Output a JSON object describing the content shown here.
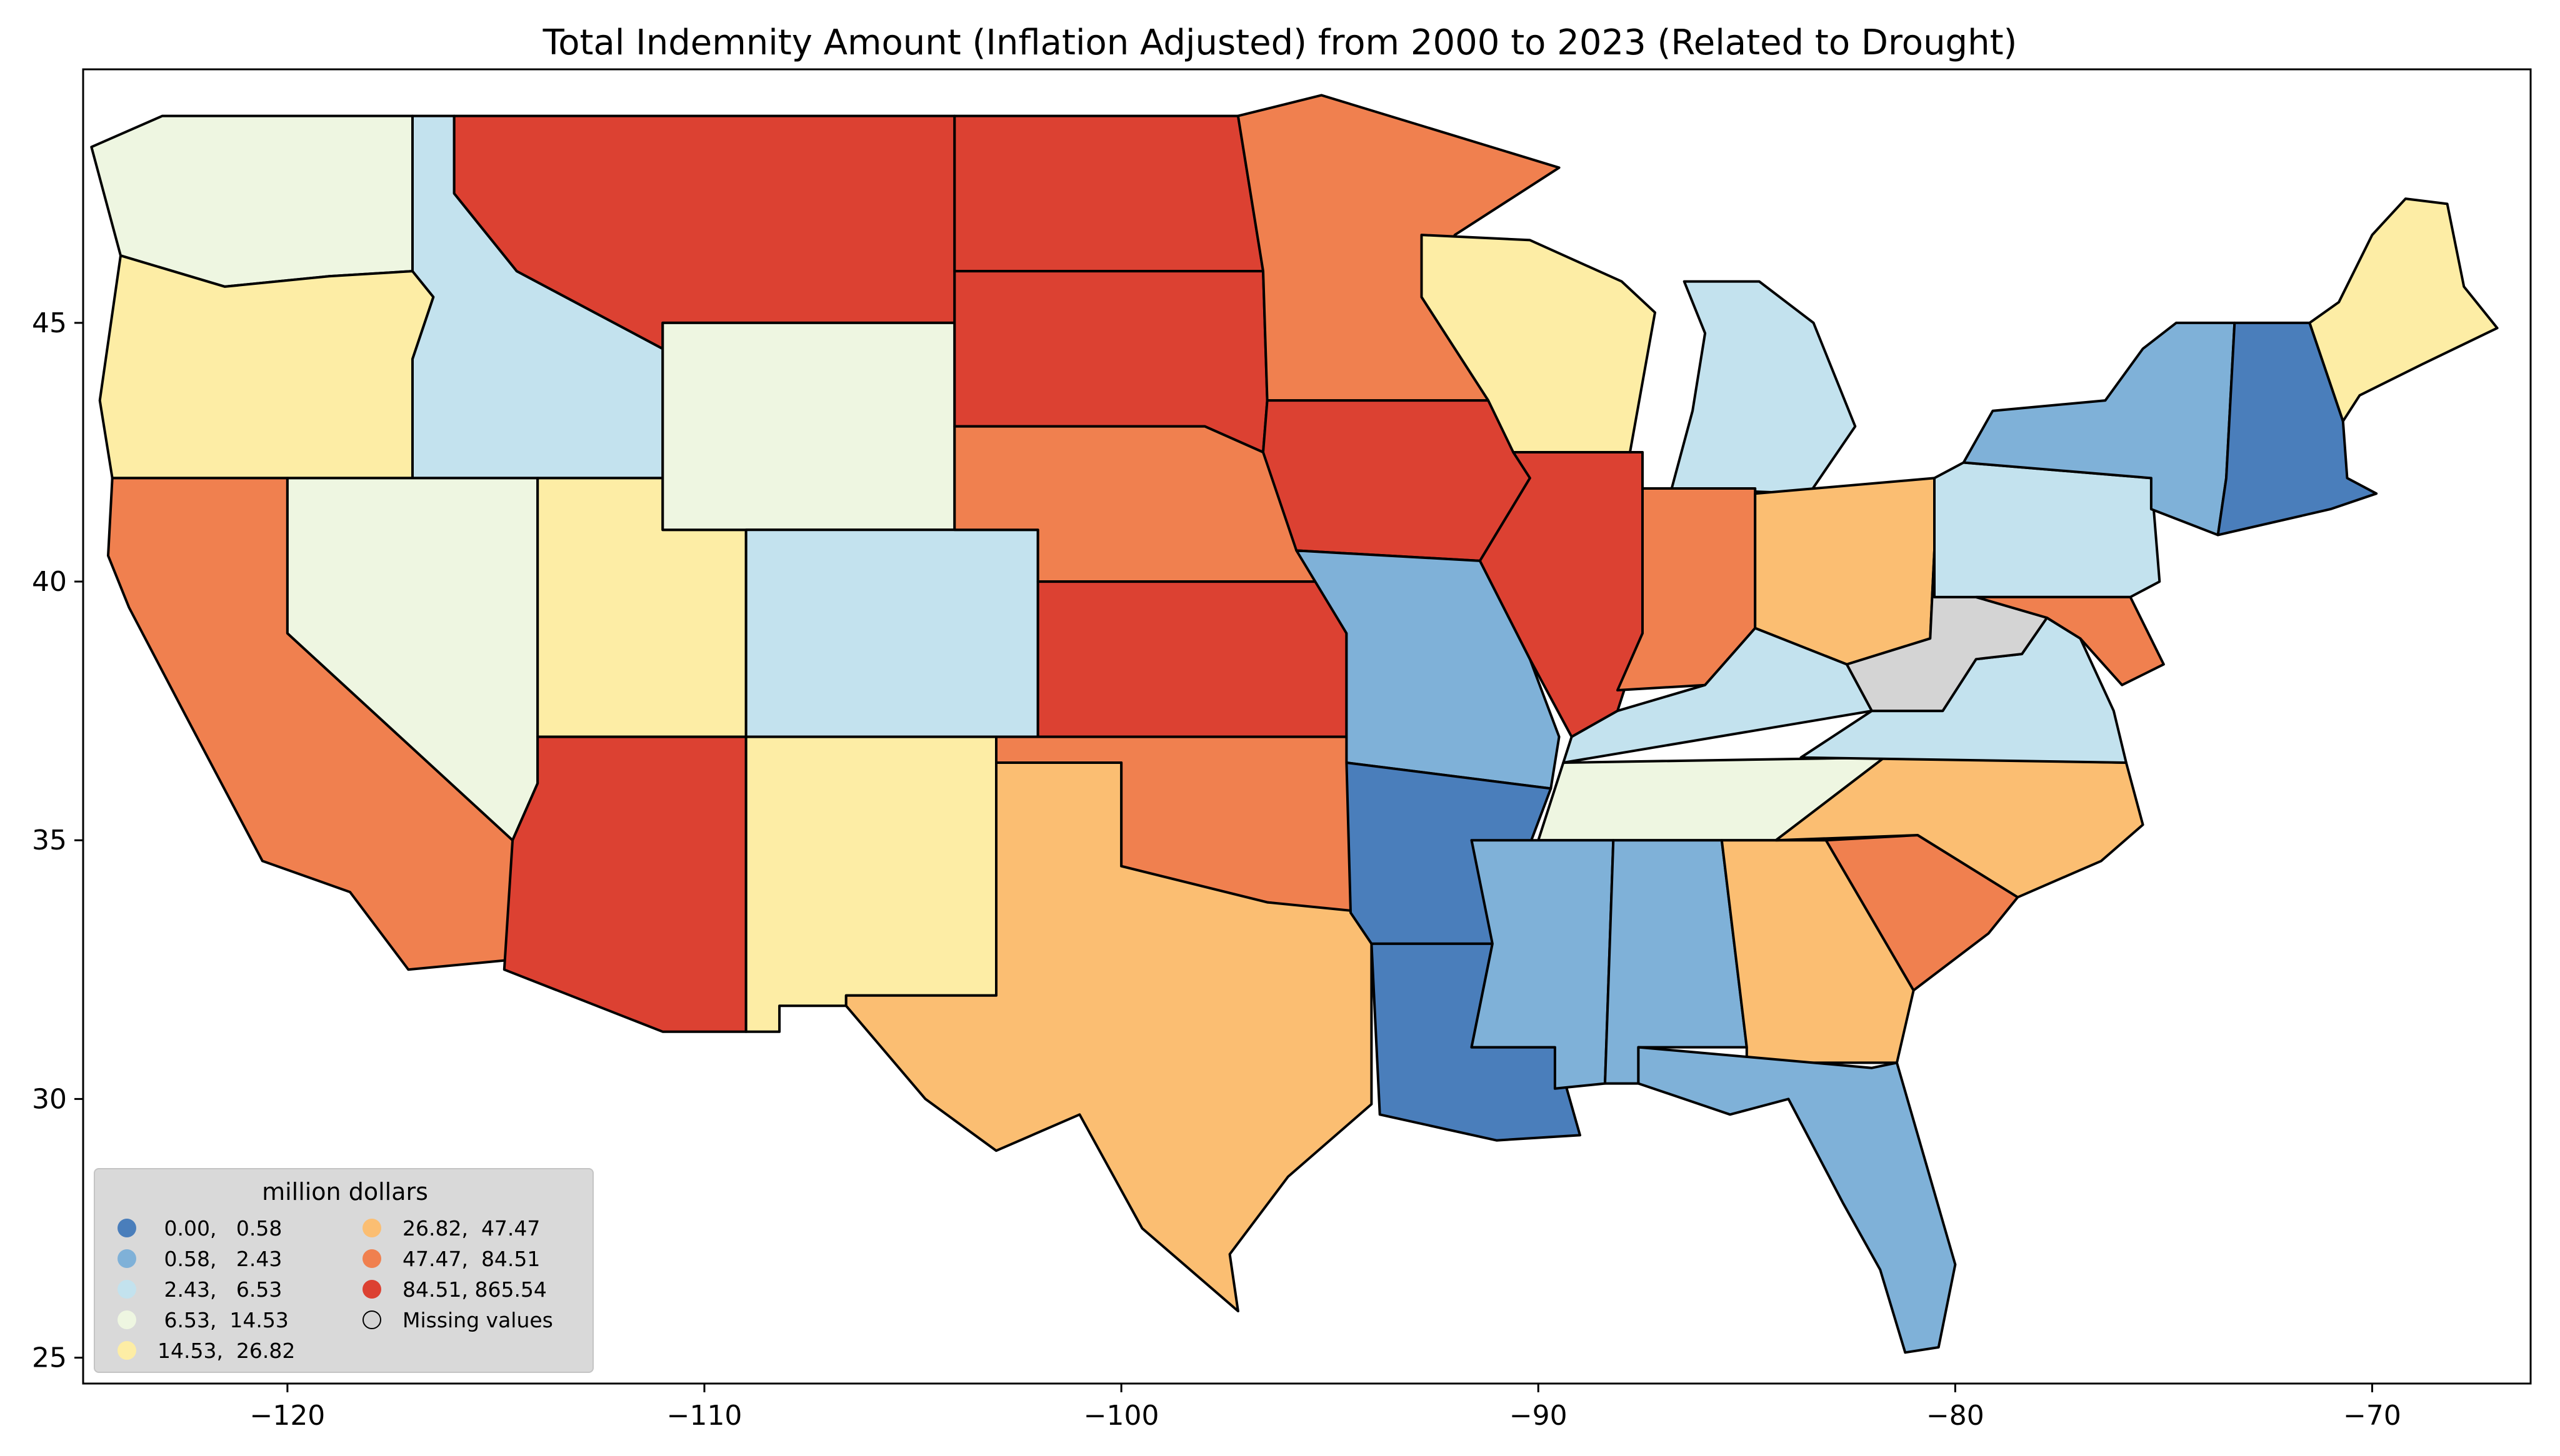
{
  "title": "Total Indemnity Amount  (Inflation Adjusted) from 2000 to 2023 (Related to Drought)",
  "axes": {
    "x_ticks": [
      "−120",
      "−110",
      "−100",
      "−90",
      "−80",
      "−70"
    ],
    "y_ticks": [
      "45",
      "40",
      "35",
      "30",
      "25"
    ],
    "x_range": [
      -124.9,
      -66.2
    ],
    "y_range": [
      24.5,
      49.9
    ]
  },
  "legend": {
    "title": "million dollars",
    "placement": "lower-left",
    "items": [
      {
        "label": " 0.00,   0.58",
        "color": "#4a7ebb"
      },
      {
        "label": " 0.58,   2.43",
        "color": "#7fb1d8"
      },
      {
        "label": " 2.43,   6.53",
        "color": "#c3e2ee"
      },
      {
        "label": " 6.53,  14.53",
        "color": "#eef6e1"
      },
      {
        "label": "14.53,  26.82",
        "color": "#fdeda5"
      },
      {
        "label": "26.82,  47.47",
        "color": "#fbbe72"
      },
      {
        "label": "47.47,  84.51",
        "color": "#f0804f"
      },
      {
        "label": "84.51, 865.54",
        "color": "#dc4132"
      },
      {
        "label": "Missing values",
        "color": "#d4d4d4"
      }
    ]
  },
  "map_regions": [
    {
      "name": "Washington",
      "class": 3
    },
    {
      "name": "Oregon",
      "class": 4
    },
    {
      "name": "California",
      "class": 6
    },
    {
      "name": "Idaho",
      "class": 2
    },
    {
      "name": "Nevada",
      "class": 3
    },
    {
      "name": "Utah",
      "class": 4
    },
    {
      "name": "Arizona",
      "class": 7
    },
    {
      "name": "Montana",
      "class": 7
    },
    {
      "name": "Wyoming",
      "class": 3
    },
    {
      "name": "Colorado",
      "class": 2
    },
    {
      "name": "New Mexico",
      "class": 4
    },
    {
      "name": "North Dakota",
      "class": 7
    },
    {
      "name": "South Dakota",
      "class": 7
    },
    {
      "name": "Nebraska",
      "class": 6
    },
    {
      "name": "Kansas",
      "class": 7
    },
    {
      "name": "Oklahoma",
      "class": 6
    },
    {
      "name": "Texas",
      "class": 5
    },
    {
      "name": "Minnesota",
      "class": 6
    },
    {
      "name": "Iowa",
      "class": 7
    },
    {
      "name": "Missouri",
      "class": 1
    },
    {
      "name": "Arkansas",
      "class": 0
    },
    {
      "name": "Louisiana",
      "class": 0
    },
    {
      "name": "Wisconsin",
      "class": 4
    },
    {
      "name": "Illinois",
      "class": 7
    },
    {
      "name": "Michigan",
      "class": 2
    },
    {
      "name": "Indiana",
      "class": 6
    },
    {
      "name": "Ohio",
      "class": 5
    },
    {
      "name": "Kentucky",
      "class": 2
    },
    {
      "name": "Tennessee",
      "class": 3
    },
    {
      "name": "Mississippi",
      "class": 1
    },
    {
      "name": "Alabama",
      "class": 1
    },
    {
      "name": "Georgia",
      "class": 5
    },
    {
      "name": "Florida",
      "class": 1
    },
    {
      "name": "South Carolina",
      "class": 6
    },
    {
      "name": "North Carolina",
      "class": 5
    },
    {
      "name": "Virginia",
      "class": 2
    },
    {
      "name": "West Virginia",
      "class": 8
    },
    {
      "name": "Pennsylvania",
      "class": 2
    },
    {
      "name": "New York",
      "class": 1
    },
    {
      "name": "Maryland",
      "class": 6
    },
    {
      "name": "New England",
      "class": 0
    },
    {
      "name": "Maine",
      "class": 4
    }
  ]
}
